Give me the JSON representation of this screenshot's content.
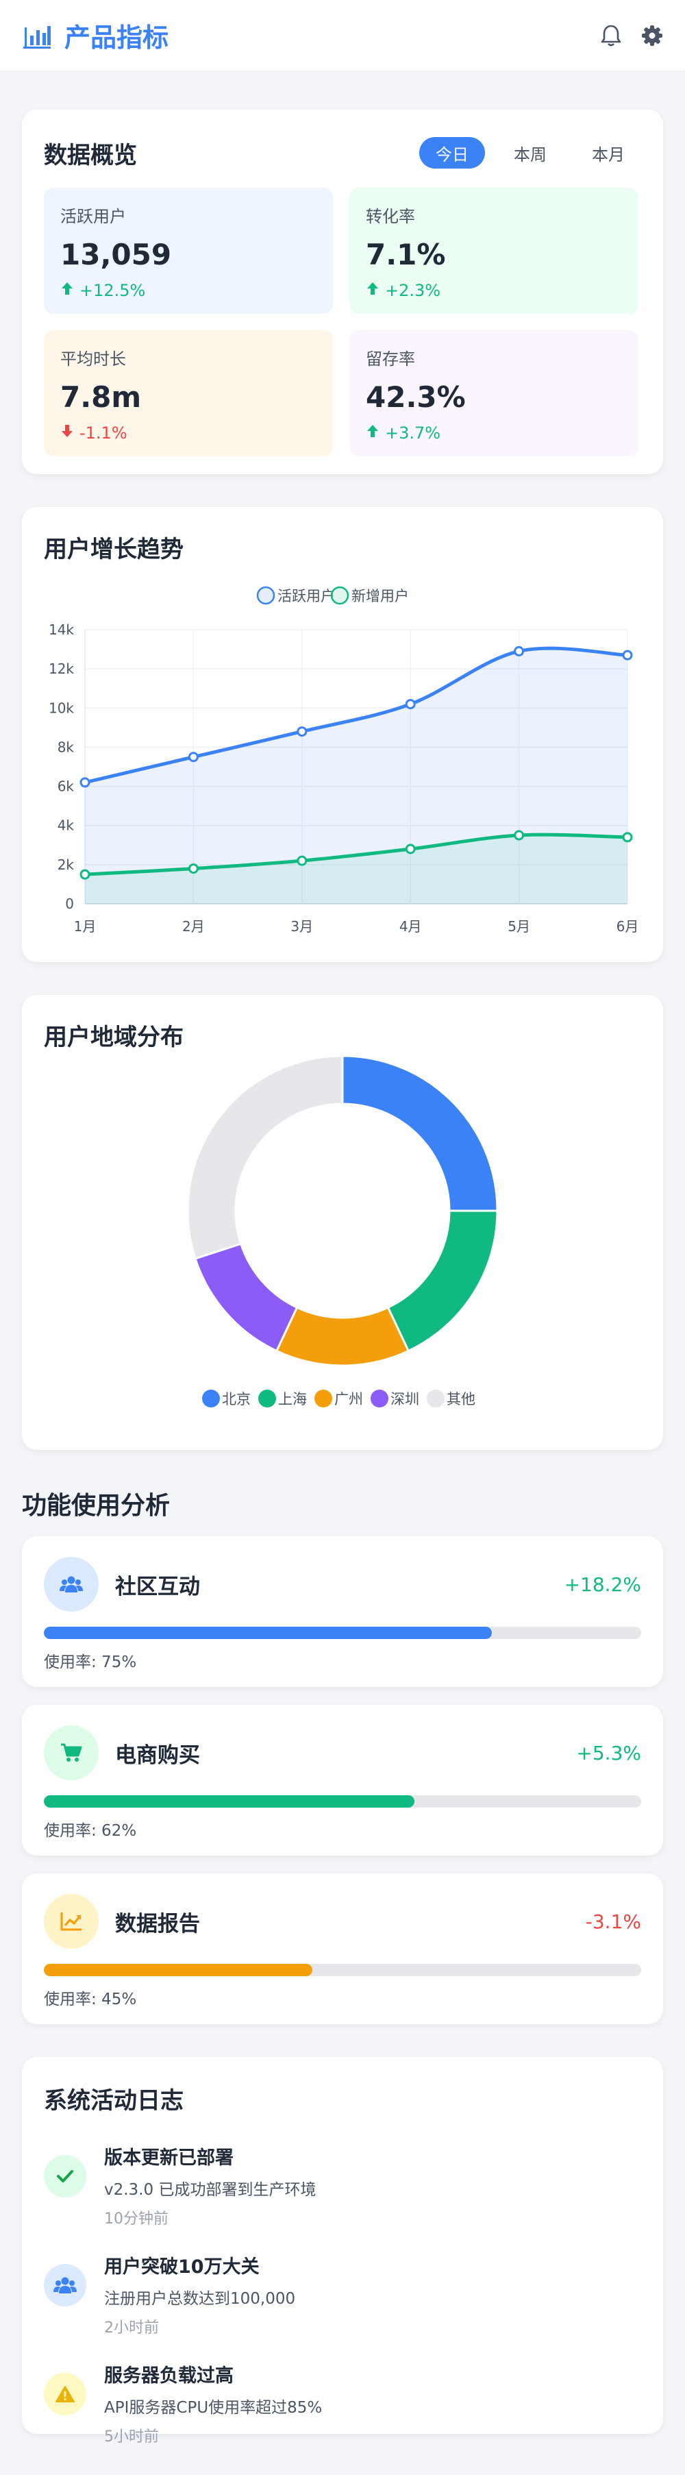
{
  "header": {
    "title": "产品指标",
    "logo_icon": "bar-chart-icon",
    "actions": [
      "bell-icon",
      "gear-icon"
    ]
  },
  "overview": {
    "title": "数据概览",
    "tabs": [
      {
        "label": "今日",
        "active": true
      },
      {
        "label": "本周",
        "active": false
      },
      {
        "label": "本月",
        "active": false
      }
    ],
    "stats": [
      {
        "label": "活跃用户",
        "value": "13,059",
        "change": "+12.5%",
        "trend": "up",
        "bg": "#eef5ff"
      },
      {
        "label": "转化率",
        "value": "7.1%",
        "change": "+2.3%",
        "trend": "up",
        "bg": "#ecfdf3"
      },
      {
        "label": "平均时长",
        "value": "7.8m",
        "change": "-1.1%",
        "trend": "down",
        "bg": "#fff6ea"
      },
      {
        "label": "留存率",
        "value": "42.3%",
        "change": "+3.7%",
        "trend": "up",
        "bg": "#fbf5ff"
      }
    ]
  },
  "trend": {
    "title": "用户增长趋势",
    "chart_data": {
      "type": "line",
      "categories": [
        "1月",
        "2月",
        "3月",
        "4月",
        "5月",
        "6月"
      ],
      "series": [
        {
          "name": "活跃用户",
          "values": [
            6200,
            7500,
            8800,
            10200,
            12900,
            12700
          ],
          "color": "#3b82f6"
        },
        {
          "name": "新增用户",
          "values": [
            1500,
            1800,
            2200,
            2800,
            3500,
            3400
          ],
          "color": "#10b981"
        }
      ],
      "ylim": [
        0,
        14000
      ],
      "yticks": [
        "0",
        "2k",
        "4k",
        "6k",
        "8k",
        "10k",
        "12k",
        "14k"
      ],
      "grid": true,
      "legend": "top"
    }
  },
  "region": {
    "title": "用户地域分布",
    "chart_data": {
      "type": "pie",
      "categories": [
        "北京",
        "上海",
        "广州",
        "深圳",
        "其他"
      ],
      "values": [
        25,
        18,
        14,
        13,
        30
      ],
      "colors": [
        "#3b82f6",
        "#10b981",
        "#f59e0b",
        "#8b5cf6",
        "#e5e7eb"
      ],
      "legend": "bottom"
    }
  },
  "features": {
    "title": "功能使用分析",
    "items": [
      {
        "name": "社区互动",
        "change": "+18.2%",
        "trend": "up",
        "usage_label": "使用率: 75%",
        "usage": 75,
        "color": "#3b82f6",
        "icon_bg": "#dbeafe",
        "icon": "users-icon"
      },
      {
        "name": "电商购买",
        "change": "+5.3%",
        "trend": "up",
        "usage_label": "使用率: 62%",
        "usage": 62,
        "color": "#10b981",
        "icon_bg": "#dcfce7",
        "icon": "cart-icon"
      },
      {
        "name": "数据报告",
        "change": "-3.1%",
        "trend": "down",
        "usage_label": "使用率: 45%",
        "usage": 45,
        "color": "#f59e0b",
        "icon_bg": "#fef3c7",
        "icon": "line-chart-icon"
      }
    ]
  },
  "log": {
    "title": "系统活动日志",
    "items": [
      {
        "title": "版本更新已部署",
        "desc": "v2.3.0 已成功部署到生产环境",
        "time": "10分钟前",
        "icon": "check-icon",
        "icon_bg": "#dcfce7"
      },
      {
        "title": "用户突破10万大关",
        "desc": "注册用户总数达到100,000",
        "time": "2小时前",
        "icon": "users-icon",
        "icon_bg": "#dbeafe"
      },
      {
        "title": "服务器负载过高",
        "desc": "API服务器CPU使用率超过85%",
        "time": "5小时前",
        "icon": "warning-icon",
        "icon_bg": "#fef9c3"
      }
    ]
  }
}
